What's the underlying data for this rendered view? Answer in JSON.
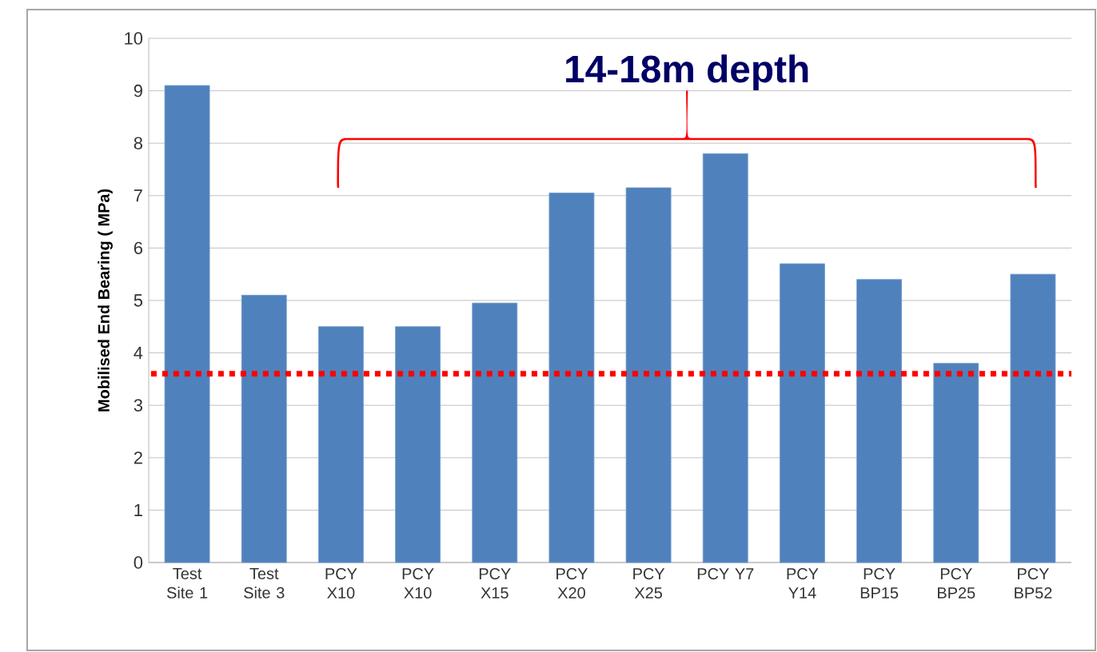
{
  "chart_data": {
    "type": "bar",
    "ylabel": "Mobilised End Bearing ( MPa)",
    "categories": [
      "Test Site 1",
      "Test Site 3",
      "PCY X10",
      "PCY X10",
      "PCY X15",
      "PCY X20",
      "PCY X25",
      "PCY Y7",
      "PCY Y14",
      "PCY BP15",
      "PCY BP25",
      "PCY BP52"
    ],
    "values": [
      9.1,
      5.1,
      4.5,
      4.5,
      4.95,
      7.05,
      7.15,
      7.8,
      5.7,
      5.4,
      3.8,
      5.5
    ],
    "color": "#4f81bd",
    "ylim": [
      0,
      10
    ],
    "yticks": [
      0,
      1,
      2,
      3,
      4,
      5,
      6,
      7,
      8,
      9,
      10
    ],
    "grid": "y",
    "ref_lines": [
      {
        "axis": "y",
        "value": 3.6,
        "color": "#ff0000",
        "line_style": "dotted"
      }
    ],
    "annotations": [
      "14-18m depth"
    ]
  }
}
